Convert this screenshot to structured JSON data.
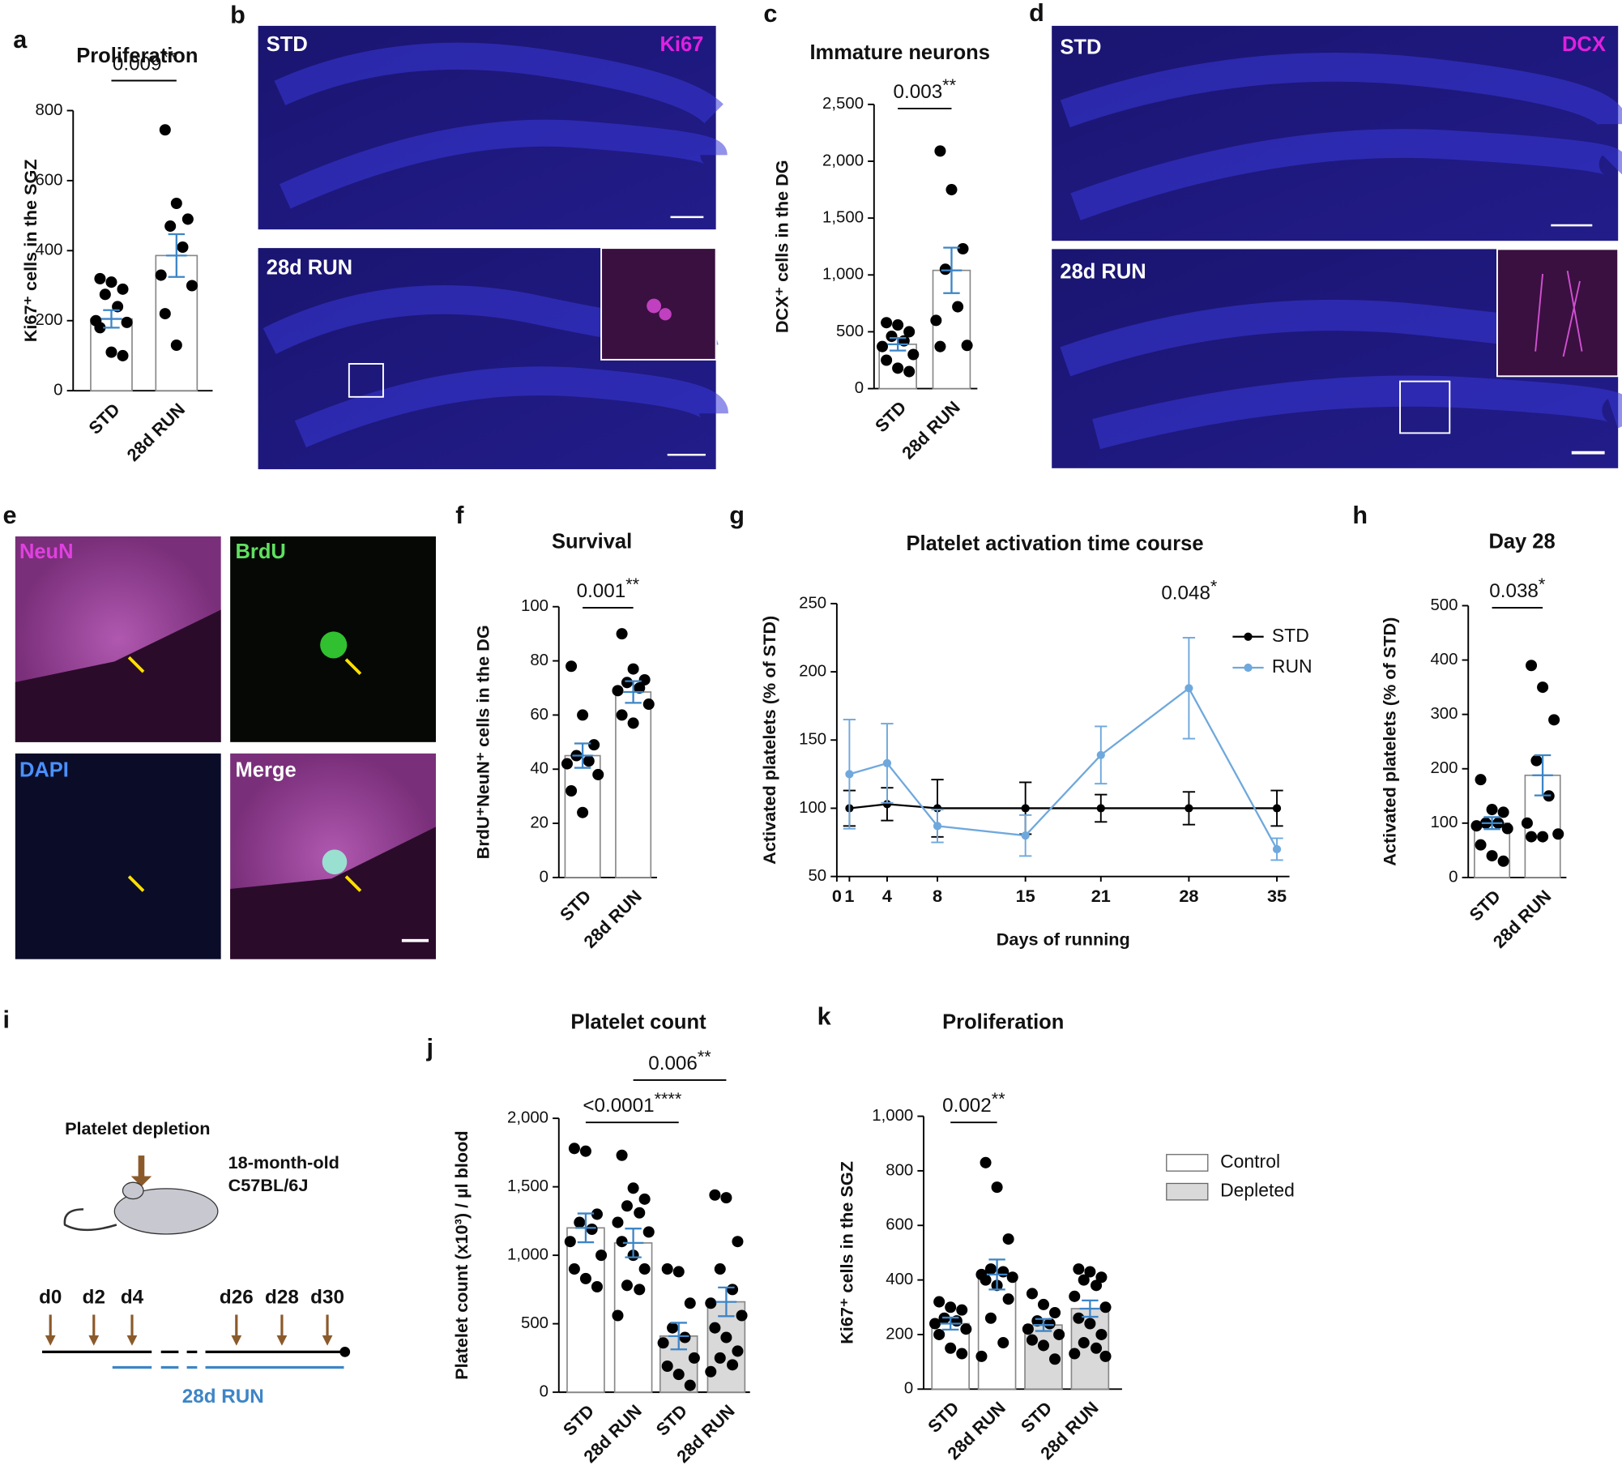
{
  "chart_data": [
    {
      "type": "bar",
      "letter": "a",
      "title": "Proliferation",
      "ylabel": "Ki67⁺ cells in the SGZ",
      "categories": [
        "STD",
        "28d RUN"
      ],
      "values": [
        205,
        386
      ],
      "errors": [
        25,
        61
      ],
      "points": [
        [
          320,
          310,
          290,
          275,
          240,
          200,
          195,
          180,
          110,
          100
        ],
        [
          745,
          535,
          490,
          470,
          410,
          330,
          300,
          220,
          130
        ]
      ],
      "colors": [
        "#ffffff",
        "#ffffff"
      ],
      "ylim": [
        0,
        800
      ],
      "yticks": [
        0,
        200,
        400,
        600,
        800
      ],
      "annotations": [
        {
          "text": "0.009",
          "stars": "**"
        }
      ]
    },
    {
      "type": "bar",
      "letter": "c",
      "title": "Immature neurons",
      "ylabel": "DCX⁺ cells in the DG",
      "categories": [
        "STD",
        "28d RUN"
      ],
      "values": [
        390,
        1040
      ],
      "errors": [
        55,
        200
      ],
      "points": [
        [
          580,
          560,
          500,
          460,
          420,
          370,
          300,
          250,
          180,
          150
        ],
        [
          2090,
          1750,
          1230,
          1050,
          720,
          600,
          380,
          370
        ]
      ],
      "colors": [
        "#ffffff",
        "#ffffff"
      ],
      "ylim": [
        0,
        2500
      ],
      "yticks": [
        0,
        500,
        {
          "value": 1000,
          "label": "1,000"
        },
        {
          "value": 1500,
          "label": "1,500"
        },
        {
          "value": 2000,
          "label": "2,000"
        },
        {
          "value": 2500,
          "label": "2,500"
        }
      ],
      "annotations": [
        {
          "text": "0.003",
          "stars": "**"
        }
      ]
    },
    {
      "type": "bar",
      "letter": "f",
      "title": "Survival",
      "ylabel": "BrdU⁺NeuN⁺ cells in the DG",
      "categories": [
        "STD",
        "28d RUN"
      ],
      "values": [
        45,
        68.5
      ],
      "errors": [
        4.5,
        4
      ],
      "points": [
        [
          78,
          60,
          49,
          45,
          43,
          42,
          38,
          32,
          24
        ],
        [
          90,
          77,
          73,
          72,
          70,
          69,
          64,
          60,
          57
        ]
      ],
      "colors": [
        "#ffffff",
        "#ffffff"
      ],
      "ylim": [
        0,
        100
      ],
      "yticks": [
        0,
        20,
        40,
        60,
        80,
        100
      ],
      "annotations": [
        {
          "text": "0.001",
          "stars": "**"
        }
      ]
    },
    {
      "type": "line",
      "letter": "g",
      "title": "Platelet activation time course",
      "xlabel": "Days of running",
      "ylabel": "Activated platelets (% of STD)",
      "x": [
        1,
        4,
        8,
        15,
        21,
        28,
        35
      ],
      "series": [
        {
          "name": "STD",
          "color": "#000000",
          "values": [
            100,
            103,
            100,
            100,
            100,
            100,
            100
          ],
          "errors": [
            13,
            12,
            21,
            19,
            10,
            12,
            13
          ]
        },
        {
          "name": "RUN",
          "color": "#6fa8dc",
          "values": [
            125,
            133,
            87,
            80,
            139,
            188,
            70
          ],
          "errors": [
            40,
            29,
            12,
            15,
            21,
            37,
            8
          ]
        }
      ],
      "xlim": [
        0,
        36
      ],
      "xticks": [
        0,
        1,
        4,
        8,
        15,
        21,
        28,
        35
      ],
      "ylim": [
        50,
        250
      ],
      "yticks": [
        50,
        100,
        150,
        200,
        250
      ],
      "legend": "upper right",
      "annotations": [
        {
          "text": "0.048",
          "stars": "*"
        }
      ]
    },
    {
      "type": "bar",
      "letter": "h",
      "title": "Day 28",
      "ylabel": "Activated platelets (% of STD)",
      "categories": [
        "STD",
        "28d RUN"
      ],
      "values": [
        100,
        188
      ],
      "errors": [
        11,
        37
      ],
      "points": [
        [
          180,
          125,
          120,
          100,
          100,
          95,
          90,
          60,
          40,
          30
        ],
        [
          390,
          350,
          290,
          215,
          150,
          100,
          80,
          75,
          75
        ]
      ],
      "colors": [
        "#ffffff",
        "#ffffff"
      ],
      "ylim": [
        0,
        500
      ],
      "yticks": [
        0,
        100,
        200,
        300,
        400,
        500
      ],
      "annotations": [
        {
          "text": "0.038",
          "stars": "*"
        }
      ]
    },
    {
      "type": "bar",
      "letter": "j",
      "title": "Platelet count",
      "ylabel": "Platelet count (x10³) / µl blood",
      "categories": [
        "STD",
        "28d RUN",
        "STD",
        "28d RUN"
      ],
      "values": [
        1200,
        1090,
        410,
        660
      ],
      "errors": [
        105,
        105,
        97,
        105
      ],
      "points": [
        [
          1780,
          1760,
          1300,
          1240,
          1190,
          1100,
          1000,
          900,
          830,
          770
        ],
        [
          1730,
          1490,
          1410,
          1360,
          1310,
          1240,
          1170,
          1100,
          1000,
          900,
          780,
          750,
          560
        ],
        [
          900,
          880,
          650,
          470,
          400,
          360,
          250,
          190,
          130,
          50
        ],
        [
          1440,
          1420,
          1100,
          900,
          750,
          650,
          560,
          470,
          400,
          300,
          250,
          200,
          150
        ]
      ],
      "colors": [
        "#ffffff",
        "#ffffff",
        "#d9d9d9",
        "#d9d9d9"
      ],
      "ylim": [
        0,
        2000
      ],
      "yticks": [
        0,
        500,
        {
          "value": 1000,
          "label": "1,000"
        },
        {
          "value": 1500,
          "label": "1,500"
        },
        {
          "value": 2000,
          "label": "2,000"
        }
      ],
      "annotations": [
        {
          "text": "<0.0001",
          "stars": "****"
        },
        {
          "text": "0.006",
          "stars": "**"
        }
      ]
    },
    {
      "type": "bar",
      "letter": "k",
      "title": "Proliferation",
      "ylabel": "Ki67⁺ cells in the SGZ",
      "categories": [
        "STD",
        "28d RUN",
        "STD",
        "28d RUN"
      ],
      "values": [
        240,
        420,
        235,
        295
      ],
      "errors": [
        22,
        55,
        22,
        30
      ],
      "points": [
        [
          320,
          300,
          290,
          260,
          250,
          240,
          220,
          200,
          150,
          130
        ],
        [
          830,
          740,
          550,
          440,
          430,
          420,
          410,
          400,
          380,
          330,
          260,
          170,
          120
        ],
        [
          350,
          310,
          280,
          250,
          240,
          220,
          200,
          180,
          160,
          110
        ],
        [
          440,
          430,
          410,
          400,
          380,
          340,
          300,
          260,
          240,
          200,
          170,
          150,
          130,
          120
        ]
      ],
      "colors": [
        "#ffffff",
        "#ffffff",
        "#d9d9d9",
        "#d9d9d9"
      ],
      "ylim": [
        0,
        1000
      ],
      "yticks": [
        0,
        200,
        400,
        600,
        800,
        {
          "value": 1000,
          "label": "1,000"
        }
      ],
      "legend": [
        {
          "name": "Control",
          "color": "#ffffff"
        },
        {
          "name": "Depleted",
          "color": "#d9d9d9"
        }
      ],
      "annotations": [
        {
          "text": "0.002",
          "stars": "**"
        }
      ]
    }
  ],
  "micrographs": [
    {
      "letter": "b",
      "tiles": [
        {
          "label": "STD",
          "marker": "Ki67"
        },
        {
          "label": "28d RUN"
        }
      ]
    },
    {
      "letter": "d",
      "tiles": [
        {
          "label": "STD",
          "marker": "DCX"
        },
        {
          "label": "28d RUN"
        }
      ]
    },
    {
      "letter": "e",
      "tiles": [
        {
          "label": "NeuN"
        },
        {
          "label": "BrdU"
        },
        {
          "label": "DAPI"
        },
        {
          "label": "Merge"
        }
      ]
    }
  ],
  "diagram": {
    "letter": "i",
    "title": "Platelet depletion",
    "mouse": [
      "18-month-old",
      "C57BL/6J"
    ],
    "days": [
      "d0",
      "d2",
      "d4",
      "d26",
      "d28",
      "d30"
    ],
    "run_label": "28d RUN"
  }
}
